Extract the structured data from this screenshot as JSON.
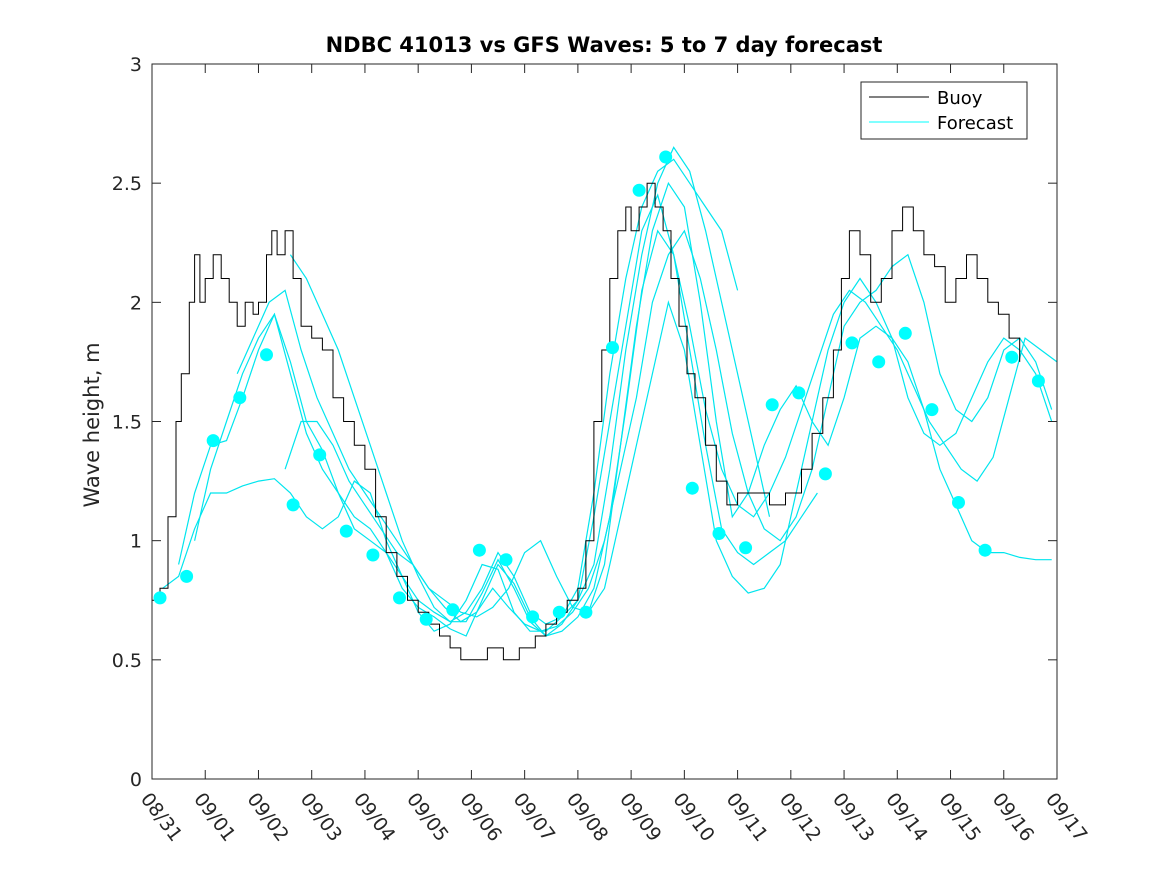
{
  "chart_data": {
    "type": "line",
    "title": "NDBC 41013 vs GFS Waves: 5 to 7 day forecast",
    "xlabel": "",
    "ylabel": "Wave height, m",
    "ylim": [
      0,
      3
    ],
    "xlim": [
      0,
      17
    ],
    "yticks": [
      0,
      0.5,
      1,
      1.5,
      2,
      2.5,
      3
    ],
    "ytick_labels": [
      "0",
      "0.5",
      "1",
      "1.5",
      "2",
      "2.5",
      "3"
    ],
    "xtick_labels": [
      "08/31",
      "09/01",
      "09/02",
      "09/03",
      "09/04",
      "09/05",
      "09/06",
      "09/07",
      "09/08",
      "09/09",
      "09/10",
      "09/11",
      "09/12",
      "09/13",
      "09/14",
      "09/15",
      "09/16",
      "09/17"
    ],
    "grid": false,
    "legend": {
      "location": "top-right",
      "entries": [
        {
          "label": "Buoy",
          "color": "#000000"
        },
        {
          "label": "Forecast",
          "color": "#00ffff"
        }
      ]
    },
    "colors": {
      "buoy": "#000000",
      "forecast": "#00e5ee",
      "markers": "#00ffff"
    },
    "buoy": {
      "name": "Buoy",
      "x": [
        0,
        0.15,
        0.3,
        0.45,
        0.55,
        0.7,
        0.8,
        0.9,
        1.0,
        1.15,
        1.3,
        1.45,
        1.6,
        1.75,
        1.9,
        2.0,
        2.15,
        2.25,
        2.35,
        2.5,
        2.65,
        2.8,
        3.0,
        3.2,
        3.4,
        3.6,
        3.8,
        4.0,
        4.2,
        4.4,
        4.6,
        4.8,
        5.0,
        5.2,
        5.4,
        5.6,
        5.8,
        6.0,
        6.3,
        6.6,
        6.9,
        7.2,
        7.4,
        7.6,
        7.8,
        8.0,
        8.15,
        8.3,
        8.45,
        8.6,
        8.75,
        8.9,
        9.0,
        9.15,
        9.3,
        9.45,
        9.6,
        9.75,
        9.9,
        10.05,
        10.2,
        10.4,
        10.6,
        10.8,
        11.0,
        11.3,
        11.6,
        11.9,
        12.2,
        12.4,
        12.6,
        12.8,
        12.95,
        13.1,
        13.3,
        13.5,
        13.7,
        13.9,
        14.1,
        14.3,
        14.5,
        14.7,
        14.9,
        15.1,
        15.3,
        15.5,
        15.7,
        15.9,
        16.1,
        16.3
      ],
      "values": [
        0.75,
        0.8,
        1.1,
        1.5,
        1.7,
        2.0,
        2.2,
        2.0,
        2.1,
        2.2,
        2.1,
        2.0,
        1.9,
        2.0,
        1.95,
        2.0,
        2.2,
        2.3,
        2.2,
        2.3,
        2.1,
        1.9,
        1.85,
        1.8,
        1.6,
        1.5,
        1.4,
        1.3,
        1.1,
        0.95,
        0.85,
        0.75,
        0.7,
        0.65,
        0.6,
        0.55,
        0.5,
        0.5,
        0.55,
        0.5,
        0.55,
        0.6,
        0.65,
        0.7,
        0.75,
        0.8,
        1.0,
        1.5,
        1.8,
        2.1,
        2.3,
        2.4,
        2.3,
        2.4,
        2.5,
        2.4,
        2.3,
        2.1,
        1.9,
        1.7,
        1.6,
        1.4,
        1.25,
        1.15,
        1.2,
        1.2,
        1.15,
        1.2,
        1.3,
        1.45,
        1.6,
        1.8,
        2.1,
        2.3,
        2.2,
        2.0,
        2.1,
        2.3,
        2.4,
        2.3,
        2.2,
        2.15,
        2.0,
        2.1,
        2.2,
        2.1,
        2.0,
        1.95,
        1.85,
        1.75
      ]
    },
    "forecast_lines": [
      {
        "name": "Forecast",
        "x": [
          0.2,
          0.5,
          0.8,
          1.1,
          1.4,
          1.7,
          2.0,
          2.3,
          2.6,
          2.9,
          3.2,
          3.5,
          3.8,
          4.1,
          4.4,
          4.7,
          5.0,
          5.3,
          5.6,
          5.9,
          6.2,
          6.5,
          6.8,
          7.1,
          7.4,
          7.7,
          8.0,
          8.3,
          8.6,
          8.9,
          9.2,
          9.5,
          9.8,
          10.1,
          10.4,
          10.7,
          11.0
        ],
        "values": [
          0.8,
          0.85,
          1.05,
          1.2,
          1.2,
          1.23,
          1.25,
          1.26,
          1.2,
          1.1,
          1.05,
          1.1,
          1.25,
          1.2,
          1.0,
          0.85,
          0.7,
          0.62,
          0.65,
          0.75,
          0.9,
          0.88,
          0.7,
          0.62,
          0.62,
          0.68,
          0.8,
          1.2,
          1.7,
          2.1,
          2.4,
          2.55,
          2.6,
          2.5,
          2.4,
          2.3,
          2.05
        ]
      },
      {
        "name": "Forecast",
        "x": [
          0.5,
          0.8,
          1.1,
          1.4,
          1.7,
          2.0,
          2.3,
          2.6,
          2.9,
          3.2,
          3.5,
          3.8,
          4.1,
          4.4,
          4.7,
          5.0,
          5.3,
          5.6,
          5.9,
          6.2,
          6.5,
          6.8,
          7.1,
          7.4,
          7.7,
          8.0,
          8.3,
          8.6,
          8.9,
          9.2,
          9.5,
          9.8,
          10.1,
          10.4,
          10.7,
          11.0,
          11.3,
          11.6
        ],
        "values": [
          0.9,
          1.2,
          1.4,
          1.42,
          1.6,
          1.8,
          1.95,
          1.75,
          1.5,
          1.38,
          1.2,
          1.05,
          1.0,
          0.95,
          0.85,
          0.75,
          0.7,
          0.66,
          0.7,
          0.8,
          0.95,
          0.85,
          0.7,
          0.65,
          0.68,
          0.75,
          0.9,
          1.3,
          1.8,
          2.2,
          2.5,
          2.65,
          2.55,
          2.3,
          2.0,
          1.7,
          1.4,
          1.1
        ]
      },
      {
        "name": "Forecast",
        "x": [
          0.8,
          1.1,
          1.4,
          1.7,
          2.0,
          2.3,
          2.6,
          2.9,
          3.2,
          3.5,
          3.8,
          4.1,
          4.4,
          4.7,
          5.0,
          5.3,
          5.6,
          5.9,
          6.2,
          6.5,
          6.8,
          7.1,
          7.4,
          7.7,
          8.0,
          8.3,
          8.6,
          8.9,
          9.2,
          9.5,
          9.8,
          10.1,
          10.4,
          10.7,
          11.0,
          11.3,
          11.6,
          11.9,
          12.2,
          12.5
        ],
        "values": [
          1.0,
          1.3,
          1.5,
          1.7,
          1.85,
          1.95,
          1.7,
          1.45,
          1.3,
          1.2,
          1.1,
          1.05,
          0.95,
          0.8,
          0.72,
          0.68,
          0.63,
          0.6,
          0.75,
          0.9,
          0.82,
          0.68,
          0.6,
          0.65,
          0.75,
          1.1,
          1.5,
          1.9,
          2.3,
          2.45,
          2.2,
          1.8,
          1.4,
          1.05,
          0.95,
          0.9,
          0.95,
          1.0,
          1.1,
          1.2
        ]
      },
      {
        "name": "Forecast",
        "x": [
          1.6,
          1.9,
          2.2,
          2.5,
          2.8,
          3.1,
          3.4,
          3.7,
          4.0,
          4.3,
          4.6,
          4.9,
          5.2,
          5.5,
          5.8,
          6.1,
          6.4,
          6.7,
          7.0,
          7.3,
          7.6,
          7.9,
          8.2,
          8.5,
          8.8,
          9.1,
          9.4,
          9.7,
          10.0,
          10.3,
          10.6,
          10.9,
          11.2,
          11.5,
          11.8,
          12.1,
          12.4,
          12.7,
          13.0,
          13.3,
          13.6,
          13.9,
          14.2,
          14.5,
          14.8,
          15.1,
          15.4,
          15.7,
          16.0,
          16.3,
          16.6,
          16.9
        ],
        "values": [
          1.7,
          1.85,
          2.0,
          2.05,
          1.8,
          1.6,
          1.45,
          1.3,
          1.2,
          1.1,
          1.0,
          0.9,
          0.8,
          0.75,
          0.7,
          0.68,
          0.72,
          0.8,
          0.95,
          1.0,
          0.85,
          0.72,
          0.7,
          0.8,
          1.1,
          1.4,
          1.7,
          2.0,
          1.8,
          1.4,
          1.0,
          0.85,
          0.78,
          0.8,
          0.9,
          1.2,
          1.5,
          1.8,
          2.0,
          2.1,
          2.0,
          1.85,
          1.6,
          1.45,
          1.4,
          1.45,
          1.6,
          1.75,
          1.85,
          1.8,
          1.7,
          1.5
        ]
      },
      {
        "name": "Forecast",
        "x": [
          2.5,
          2.8,
          3.1,
          3.4,
          3.7,
          4.0,
          4.3,
          4.6,
          4.9,
          5.2,
          5.5,
          5.8,
          6.1,
          6.4,
          6.7,
          7.0,
          7.3,
          7.6,
          7.9,
          8.2,
          8.5,
          8.8,
          9.1,
          9.4,
          9.7,
          10.0,
          10.3,
          10.6,
          10.9,
          11.2,
          11.5,
          11.8,
          12.1,
          12.4,
          12.7,
          13.0,
          13.3,
          13.6,
          13.9,
          14.2,
          14.5,
          14.8,
          15.1,
          15.4,
          15.7,
          16.0,
          16.3,
          16.6,
          16.9
        ],
        "values": [
          1.3,
          1.5,
          1.5,
          1.4,
          1.25,
          1.15,
          1.05,
          0.95,
          0.9,
          0.8,
          0.72,
          0.66,
          0.7,
          0.8,
          0.72,
          0.65,
          0.62,
          0.64,
          0.7,
          0.8,
          1.0,
          1.3,
          1.6,
          2.0,
          2.2,
          2.3,
          2.1,
          1.8,
          1.45,
          1.2,
          1.05,
          1.0,
          1.1,
          1.3,
          1.6,
          1.9,
          2.0,
          2.05,
          2.15,
          2.2,
          2.0,
          1.7,
          1.55,
          1.5,
          1.6,
          1.8,
          1.85,
          1.75,
          1.55
        ]
      },
      {
        "name": "Forecast",
        "x": [
          2.6,
          2.9,
          3.2,
          3.5,
          3.8,
          4.1,
          4.4,
          4.7,
          5.0,
          5.3,
          5.6,
          5.9,
          6.2,
          6.5,
          6.8,
          7.1,
          7.4,
          7.7,
          8.0,
          8.3,
          8.6,
          8.9,
          9.2,
          9.5,
          9.8,
          10.1,
          10.4,
          10.7,
          11.0,
          11.3,
          11.6,
          11.9,
          12.2,
          12.5,
          12.8,
          13.1,
          13.4,
          13.7,
          14.0,
          14.3,
          14.6,
          14.9,
          15.2,
          15.5,
          15.8,
          16.1,
          16.4,
          16.7,
          17.0
        ],
        "values": [
          2.2,
          2.1,
          1.95,
          1.8,
          1.6,
          1.4,
          1.2,
          1.0,
          0.85,
          0.72,
          0.66,
          0.66,
          0.78,
          0.92,
          0.8,
          0.66,
          0.6,
          0.62,
          0.68,
          0.8,
          1.1,
          1.55,
          2.05,
          2.3,
          2.2,
          1.9,
          1.55,
          1.3,
          1.15,
          1.1,
          1.2,
          1.35,
          1.55,
          1.75,
          1.95,
          2.05,
          2.0,
          1.9,
          1.8,
          1.65,
          1.5,
          1.4,
          1.3,
          1.25,
          1.35,
          1.6,
          1.85,
          1.8,
          1.75
        ]
      },
      {
        "name": "Forecast",
        "x": [
          8.2,
          8.5,
          8.8,
          9.1,
          9.4,
          9.7,
          10.0,
          10.3,
          10.6,
          10.9,
          11.2,
          11.5,
          11.8,
          12.1,
          12.4,
          12.7,
          13.0,
          13.3,
          13.6,
          13.9,
          14.2,
          14.5,
          14.8,
          15.1,
          15.4,
          15.7,
          16.0,
          16.3,
          16.6,
          16.9
        ],
        "values": [
          0.7,
          0.9,
          1.4,
          1.9,
          2.3,
          2.5,
          2.4,
          2.0,
          1.5,
          1.1,
          1.2,
          1.4,
          1.55,
          1.65,
          1.5,
          1.4,
          1.6,
          1.85,
          1.9,
          1.85,
          1.75,
          1.55,
          1.3,
          1.15,
          1.0,
          0.95,
          0.95,
          0.93,
          0.92,
          0.92
        ]
      }
    ],
    "forecast_points": {
      "name": "Forecast",
      "x": [
        0.15,
        0.65,
        1.15,
        1.65,
        2.15,
        2.65,
        3.15,
        3.65,
        4.15,
        4.65,
        5.15,
        5.65,
        6.15,
        6.65,
        7.15,
        7.65,
        8.15,
        8.65,
        9.15,
        9.65,
        10.15,
        10.65,
        11.15,
        11.65,
        12.15,
        12.65,
        13.15,
        13.65,
        14.15,
        14.65,
        15.15,
        15.65,
        16.15,
        16.65
      ],
      "values": [
        0.76,
        0.85,
        1.42,
        1.6,
        1.78,
        1.15,
        1.36,
        1.04,
        0.94,
        0.76,
        0.67,
        0.71,
        0.96,
        0.92,
        0.68,
        0.7,
        0.7,
        1.81,
        2.47,
        2.61,
        1.22,
        1.03,
        0.97,
        1.57,
        1.62,
        1.28,
        1.83,
        1.75,
        1.87,
        1.55,
        1.16,
        0.96,
        1.77,
        1.67
      ]
    }
  }
}
